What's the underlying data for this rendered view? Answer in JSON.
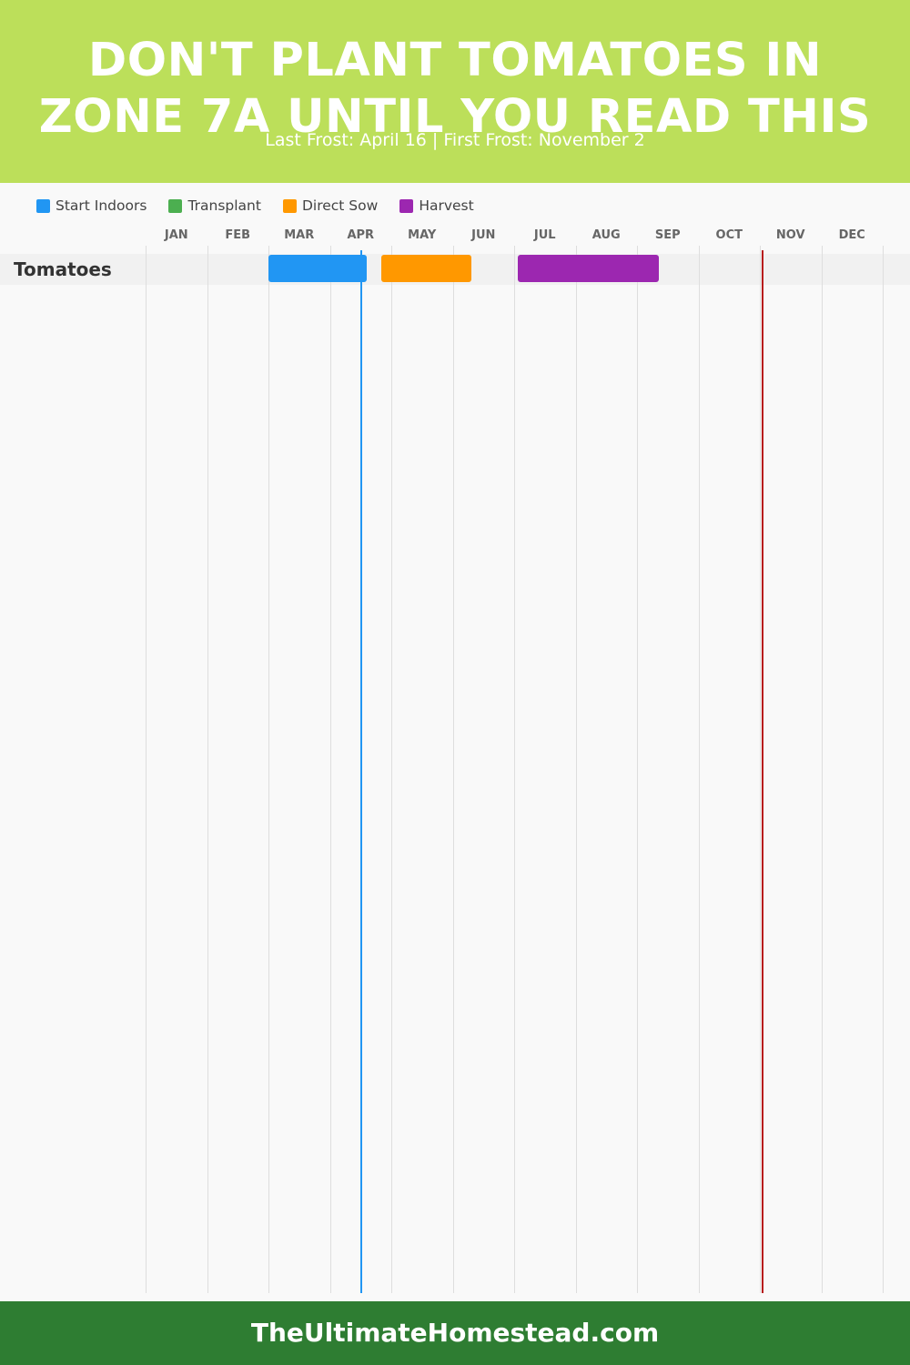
{
  "header": {
    "title": "DON'T PLANT TOMATOES IN\nZONE 7A UNTIL YOU READ THIS",
    "subtitle": "Last Frost: April 16 | First Frost: November 2"
  },
  "legend": [
    {
      "name": "start-indoors",
      "label": "Start Indoors",
      "color": "#2196f3"
    },
    {
      "name": "transplant",
      "label": "Transplant",
      "color": "#4caf50"
    },
    {
      "name": "direct-sow",
      "label": "Direct Sow",
      "color": "#ff9800"
    },
    {
      "name": "harvest",
      "label": "Harvest",
      "color": "#9c27b0"
    }
  ],
  "chart_data": {
    "type": "gantt",
    "months": [
      "JAN",
      "FEB",
      "MAR",
      "APR",
      "MAY",
      "JUN",
      "JUL",
      "AUG",
      "SEP",
      "OCT",
      "NOV",
      "DEC"
    ],
    "rows": [
      {
        "crop": "Tomatoes",
        "phases": [
          {
            "phase": "Start Indoors",
            "start": "2024-03-01",
            "end": "2024-04-19"
          },
          {
            "phase": "Direct Sow",
            "start": "2024-04-26",
            "end": "2024-06-10"
          },
          {
            "phase": "Harvest",
            "start": "2024-07-03",
            "end": "2024-09-12"
          }
        ]
      }
    ],
    "markers": [
      {
        "label": "Last Frost",
        "date": "2024-04-16",
        "color": "#2196f3"
      },
      {
        "label": "First Frost",
        "date": "2024-11-02",
        "color": "#b71c1c"
      }
    ]
  },
  "footer": {
    "text": "TheUltimateHomestead.com"
  },
  "colors": {
    "header_bg": "#bcdf5a",
    "footer_bg": "#2e7d32",
    "background": "#f9f9f9"
  }
}
